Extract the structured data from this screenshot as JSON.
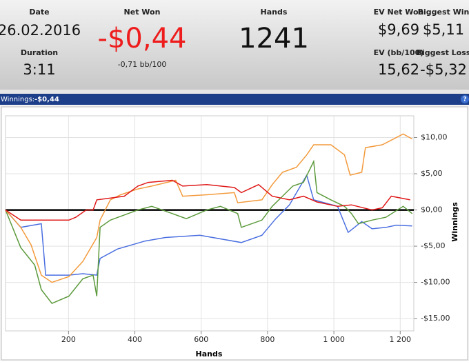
{
  "header": {
    "date_label": "Date",
    "date": "26.02.2016",
    "duration_label": "Duration",
    "duration": "3:11",
    "net_won_label": "Net Won",
    "net_won": "-$0,44",
    "bb100": "-0,71 bb/100",
    "hands_label": "Hands",
    "hands": "1241",
    "ev_net_won_label": "EV Net Won",
    "ev_net_won": "$9,69",
    "biggest_win_label": "Biggest Win",
    "biggest_win": "$5,11",
    "ev_bb100_label": "EV (bb/100)",
    "ev_bb100": "15,62",
    "biggest_loss_label": "Biggest Loss",
    "biggest_loss": "-$5,32"
  },
  "toolbar": {
    "title": "Winnings:",
    "value": "-$0,44",
    "help": "?"
  },
  "chart_data": {
    "type": "line",
    "xlabel": "Hands",
    "ylabel": "Winnings",
    "xlim": [
      10,
      1241
    ],
    "ylim": [
      -16.7,
      13
    ],
    "xticks": [
      200,
      400,
      600,
      800,
      {
        "value": 1000,
        "label": "1 000"
      },
      {
        "value": 1200,
        "label": "1 200"
      }
    ],
    "yticks": [
      {
        "value": -15,
        "label": "-$15,00"
      },
      {
        "value": -10,
        "label": "-$10,00"
      },
      {
        "value": -5,
        "label": "-$5,00"
      },
      {
        "value": 0,
        "label": "$0,00"
      },
      {
        "value": 5,
        "label": "$5,00"
      },
      {
        "value": 10,
        "label": "$10,00"
      }
    ],
    "grid": true,
    "series": [
      {
        "color": "#4a6fe0",
        "x": [
          10,
          56,
          118,
          131,
          201,
          243,
          285,
          295,
          347,
          430,
          492,
          596,
          721,
          783,
          825,
          866,
          918,
          939,
          1011,
          1043,
          1084,
          1115,
          1157,
          1188,
          1236
        ],
        "values": [
          0,
          -2.4,
          -1.9,
          -9,
          -9,
          -8.8,
          -9,
          -6.7,
          -5.4,
          -4.3,
          -3.8,
          -3.5,
          -4.5,
          -3.5,
          -1.2,
          0.7,
          4.8,
          1.4,
          0.5,
          -3.1,
          -1.6,
          -2.6,
          -2.4,
          -2.1,
          -2.2
        ]
      },
      {
        "color": "#5c9a3c",
        "x": [
          10,
          56,
          98,
          118,
          150,
          201,
          243,
          274,
          285,
          295,
          326,
          409,
          451,
          513,
          555,
          617,
          658,
          710,
          721,
          783,
          814,
          845,
          876,
          908,
          939,
          949,
          991,
          1032,
          1053,
          1074,
          1115,
          1157,
          1209,
          1236
        ],
        "values": [
          0,
          -5.2,
          -7.6,
          -11,
          -12.9,
          -11.9,
          -9.5,
          -9,
          -11.9,
          -2.4,
          -1.4,
          0,
          0.5,
          -0.5,
          -1.2,
          0,
          0.5,
          -0.5,
          -2.4,
          -1.4,
          0.5,
          1.9,
          3.3,
          3.8,
          6.7,
          2.4,
          1.4,
          0.5,
          -0.5,
          -1.9,
          -1.4,
          -1,
          0.5,
          -0.5
        ]
      },
      {
        "color": "#f39a3c",
        "x": [
          10,
          56,
          87,
          118,
          150,
          201,
          243,
          285,
          295,
          326,
          357,
          409,
          451,
          523,
          544,
          617,
          700,
          710,
          783,
          814,
          845,
          887,
          918,
          939,
          991,
          1032,
          1049,
          1084,
          1095,
          1146,
          1167,
          1209,
          1236
        ],
        "values": [
          0,
          -2.4,
          -4.8,
          -9,
          -10,
          -9.2,
          -7.1,
          -3.8,
          -1.4,
          1.4,
          2.1,
          2.9,
          3.3,
          4.1,
          1.9,
          2.1,
          2.4,
          1,
          1.4,
          3.5,
          5.2,
          5.9,
          7.6,
          9,
          9,
          7.6,
          4.8,
          5.2,
          8.6,
          9,
          9.5,
          10.5,
          9.8
        ]
      },
      {
        "color": "#e01818",
        "x": [
          10,
          56,
          201,
          222,
          253,
          274,
          285,
          368,
          409,
          440,
          513,
          544,
          617,
          700,
          721,
          773,
          814,
          866,
          908,
          949,
          1011,
          1053,
          1115,
          1146,
          1173,
          1230
        ],
        "values": [
          0,
          -1.4,
          -1.4,
          -1,
          0,
          0,
          1.4,
          1.9,
          3.3,
          3.8,
          4.1,
          3.3,
          3.5,
          3.1,
          2.4,
          3.5,
          1.9,
          1.4,
          1.9,
          1.1,
          0.5,
          0.7,
          0,
          0.3,
          1.9,
          1.4
        ]
      }
    ]
  }
}
